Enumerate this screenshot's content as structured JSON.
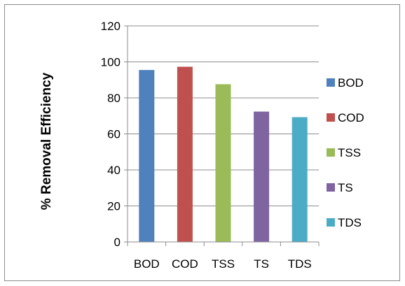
{
  "chart_data": {
    "type": "bar",
    "title": "",
    "xlabel": "",
    "ylabel": "% Removal Efficiency",
    "ylim": [
      0,
      120
    ],
    "yticks": [
      0,
      20,
      40,
      60,
      80,
      100,
      120
    ],
    "grid": true,
    "legend_position": "right",
    "categories": [
      "BOD",
      "COD",
      "TSS",
      "TS",
      "TDS"
    ],
    "values": [
      95.5,
      97.3,
      87.6,
      72.4,
      69.3
    ],
    "colors": [
      "#4f81bd",
      "#c0504d",
      "#9bbb59",
      "#8064a2",
      "#4bacc6"
    ],
    "legend": [
      "BOD",
      "COD",
      "TSS",
      "TS",
      "TDS"
    ]
  }
}
